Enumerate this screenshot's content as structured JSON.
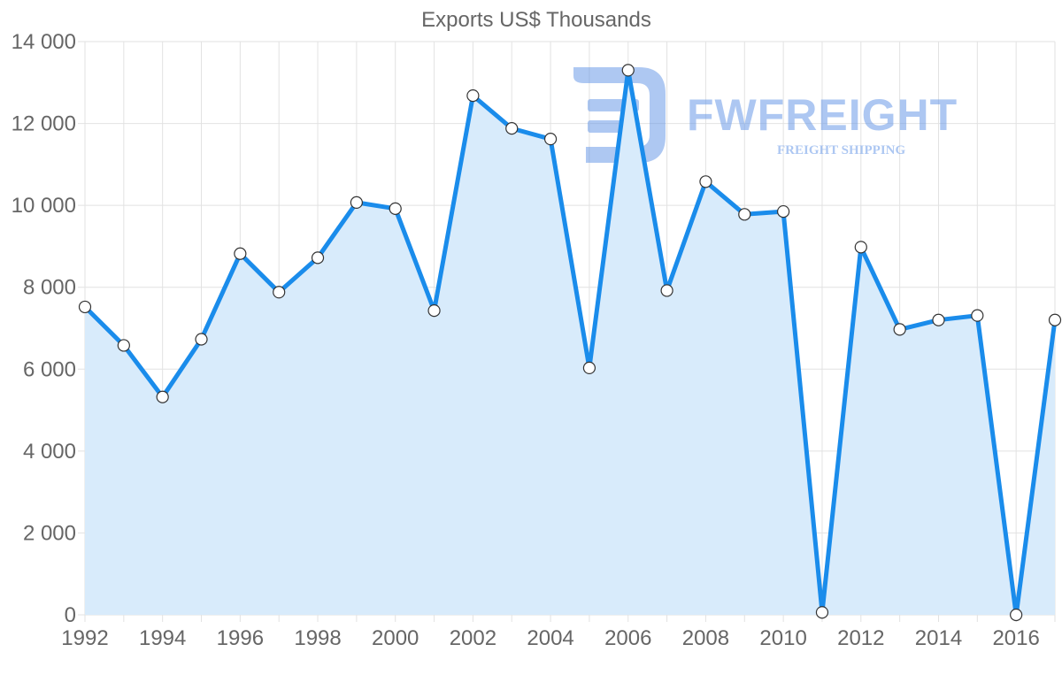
{
  "chart_data": {
    "type": "area",
    "title": "Exports US$ Thousands",
    "xlabel": "",
    "ylabel": "",
    "x": [
      1992,
      1993,
      1994,
      1995,
      1996,
      1997,
      1998,
      1999,
      2000,
      2001,
      2002,
      2003,
      2004,
      2005,
      2006,
      2007,
      2008,
      2009,
      2010,
      2011,
      2012,
      2013,
      2014,
      2015,
      2016,
      2017
    ],
    "xlim": [
      1992,
      2017
    ],
    "x_tick_labels": [
      "1992",
      "1994",
      "1996",
      "1998",
      "2000",
      "2002",
      "2004",
      "2006",
      "2008",
      "2010",
      "2012",
      "2014",
      "2016"
    ],
    "series": [
      {
        "name": "Exports US$ Thousands",
        "values": [
          7520,
          6580,
          5320,
          6730,
          8820,
          7880,
          8720,
          10070,
          9920,
          7430,
          12680,
          11880,
          11620,
          6030,
          13300,
          7920,
          10580,
          9780,
          9850,
          60,
          8980,
          6970,
          7200,
          7310,
          0,
          7200
        ],
        "color": "#1a8ceb",
        "fill_color": "#d8ebfb"
      }
    ],
    "ylim": [
      0,
      14000
    ],
    "y_ticks": [
      0,
      2000,
      4000,
      6000,
      8000,
      10000,
      12000,
      14000
    ],
    "y_tick_labels": [
      "0",
      "2 000",
      "4 000",
      "6 000",
      "8 000",
      "10 000",
      "12 000",
      "14 000"
    ],
    "grid": true,
    "legend": "none"
  },
  "watermark": {
    "brand": "FWFREIGHT",
    "subtitle": "FREIGHT SHIPPING",
    "color": "#6b9be8"
  }
}
